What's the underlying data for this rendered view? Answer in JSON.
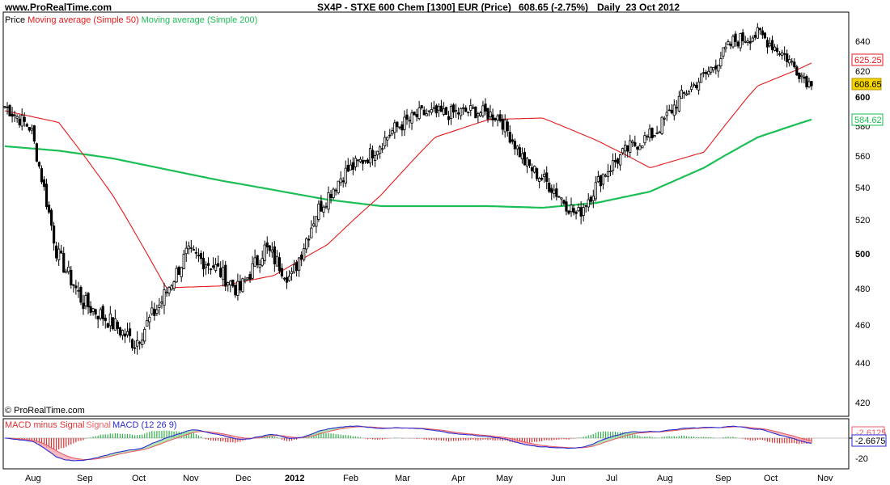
{
  "header": {
    "site": "www.ProRealTime.com",
    "title": "SX4P - STXE 600 Chem [1300] EUR (Price)",
    "value": "608.65 (-2.75%)",
    "period": "Daily  23 Oct 2012"
  },
  "legend": {
    "price": "Price",
    "ma50": "Moving average (Simple 50)",
    "ma200": "Moving average (Simple 200)"
  },
  "copyright": "© ProRealTime.com",
  "macd_legend": {
    "hist": "MACD minus Signal",
    "signal": "Signal",
    "macd": "MACD (12 26 9)"
  },
  "price_axis": {
    "ticks": [
      "640",
      "620",
      "600",
      "580",
      "560",
      "540",
      "520",
      "500",
      "480",
      "460",
      "440",
      "420"
    ],
    "tags": {
      "ma50": "625.25",
      "last": "608.65",
      "ma200": "584.62"
    }
  },
  "macd_axis": {
    "ticks": [
      "-20"
    ],
    "tags": {
      "macd": "-2.6675",
      "signal": "-2.6125"
    }
  },
  "x_axis": {
    "labels": [
      "Aug",
      "Sep",
      "Oct",
      "Nov",
      "Dec",
      "2012",
      "Feb",
      "Mar",
      "Apr",
      "May",
      "Jun",
      "Jul",
      "Aug",
      "Sep",
      "Oct",
      "Nov"
    ]
  },
  "colors": {
    "price": "#000000",
    "ma50": "#e41a1c",
    "ma200": "#1bbf55",
    "macd": "#2a2ad0",
    "signal": "#e8606a",
    "hist_pos": "#2fb34a",
    "hist_neg": "#e03030",
    "fill_pos": "#9be0a0",
    "fill_neg": "#f4a7b0",
    "last_tag": "#f5d400"
  },
  "chart_data": {
    "type": "line",
    "series": [
      {
        "name": "Price",
        "x": [
          "Jul",
          "Aug",
          "Aug",
          "Sep",
          "Sep",
          "Oct",
          "Oct",
          "Nov",
          "Nov",
          "Dec",
          "Dec",
          "2012",
          "2012",
          "Feb",
          "Feb",
          "Mar",
          "Mar",
          "Apr",
          "Apr",
          "May",
          "May",
          "Jun",
          "Jun",
          "Jul",
          "Jul",
          "Aug",
          "Aug",
          "Sep",
          "Sep",
          "Oct",
          "Oct",
          "Oct"
        ],
        "values": [
          593,
          578,
          500,
          472,
          462,
          450,
          472,
          500,
          493,
          478,
          503,
          485,
          525,
          548,
          560,
          578,
          588,
          588,
          590,
          586,
          555,
          540,
          522,
          548,
          565,
          575,
          600,
          618,
          640,
          645,
          630,
          608
        ]
      },
      {
        "name": "Moving average (Simple 50)",
        "x": [
          "Jul",
          "Aug",
          "Sep",
          "Oct",
          "Nov",
          "Dec",
          "2012",
          "Feb",
          "Mar",
          "Apr",
          "May",
          "Jun",
          "Jul",
          "Aug",
          "Sep",
          "Oct"
        ],
        "values": [
          590,
          582,
          535,
          480,
          481,
          487,
          505,
          535,
          572,
          584,
          585,
          570,
          552,
          562,
          608,
          625
        ]
      },
      {
        "name": "Moving average (Simple 200)",
        "x": [
          "Jul",
          "Aug",
          "Sep",
          "Oct",
          "Nov",
          "Dec",
          "2012",
          "Feb",
          "Mar",
          "Apr",
          "May",
          "Jun",
          "Jul",
          "Aug",
          "Sep",
          "Oct"
        ],
        "values": [
          566,
          563,
          558,
          551,
          544,
          538,
          532,
          528,
          528,
          528,
          527,
          530,
          537,
          552,
          572,
          584
        ]
      }
    ],
    "ylim": [
      415,
      650
    ],
    "grid": false,
    "legend_placement": "top-left"
  }
}
